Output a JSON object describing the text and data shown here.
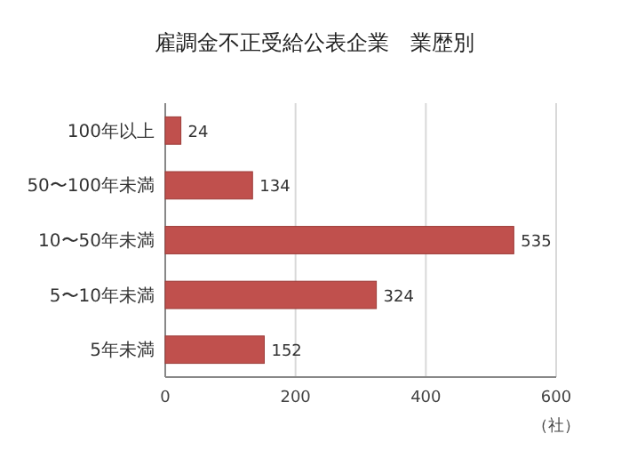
{
  "chart_data": {
    "type": "bar",
    "orientation": "horizontal",
    "title": "雇調金不正受給公表企業　業歴別",
    "xlabel": "（社）",
    "categories": [
      "100年以上",
      "50〜100年未満",
      "10〜50年未満",
      "5〜10年未満",
      "5年未満"
    ],
    "values": [
      24,
      134,
      535,
      324,
      152
    ],
    "color": "#c0504d",
    "xlim": [
      0,
      600
    ],
    "xticks": [
      0,
      200,
      400,
      600
    ],
    "grid": "x",
    "data_labels": true
  }
}
